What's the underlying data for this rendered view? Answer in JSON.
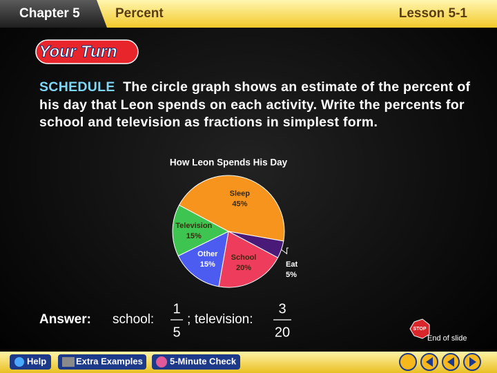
{
  "header": {
    "chapter": "Chapter 5",
    "topic": "Percent",
    "lesson": "Lesson 5-1"
  },
  "badge": "Your Turn",
  "problem": {
    "label": "SCHEDULE",
    "text": "The circle graph shows an estimate of the percent of his day that Leon spends on each activity. Write the percents for school and television as fractions in simplest form."
  },
  "chart_data": {
    "type": "pie",
    "title": "How Leon Spends His Day",
    "categories": [
      "Sleep",
      "Eat",
      "School",
      "Other",
      "Television"
    ],
    "values": [
      45,
      5,
      20,
      15,
      15
    ],
    "value_labels": [
      "45%",
      "5%",
      "20%",
      "15%",
      "15%"
    ],
    "colors": [
      "#f7941d",
      "#4a1a78",
      "#ee3d5c",
      "#4d5cf0",
      "#3ec450"
    ]
  },
  "answer": {
    "label": "Answer:",
    "school_label": "school:",
    "school_num": "1",
    "school_den": "5",
    "separator": ";",
    "tv_label": "television:",
    "tv_num": "3",
    "tv_den": "20"
  },
  "stop": "STOP",
  "end_label": "End of slide",
  "nav": {
    "help": "Help",
    "examples": "Extra Examples",
    "check": "5-Minute Check"
  }
}
